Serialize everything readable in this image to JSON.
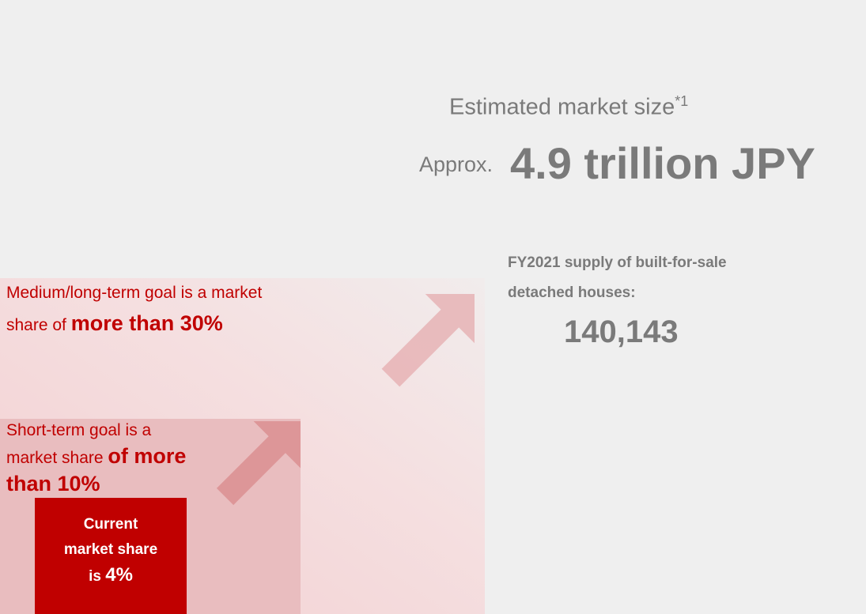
{
  "market": {
    "title": "Estimated market size",
    "footnote": "*1",
    "prefix": "Approx.",
    "value": "4.9 trillion JPY"
  },
  "supply": {
    "label_lines": [
      "FY2021 supply of built-for-sale",
      "detached houses:"
    ],
    "value": "140,143"
  },
  "goals": {
    "medium": {
      "lines": [
        "Medium/long-term goal is a market",
        "share of"
      ],
      "emphasis": "more than 30%"
    },
    "short": {
      "lines": [
        "Short-term goal is a",
        "market share"
      ],
      "emphasis_lines": [
        "of more",
        "than 10%"
      ]
    },
    "current": {
      "lines": [
        "Current",
        "market share",
        "is"
      ],
      "emphasis": "4%"
    }
  }
}
